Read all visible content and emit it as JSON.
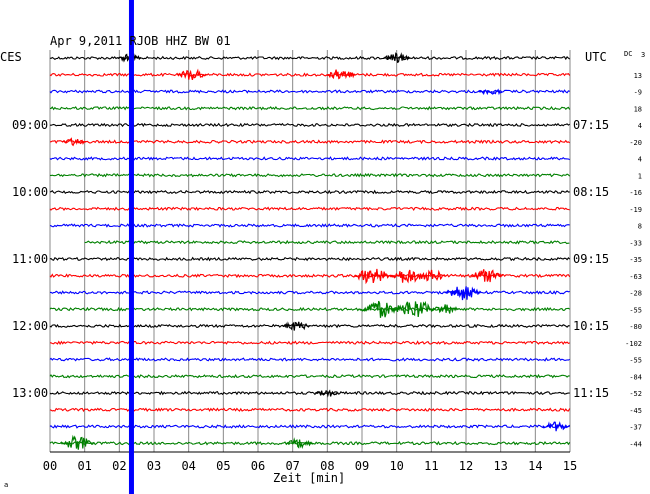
{
  "header": {
    "title": "Apr 9,2011  RJOB HHZ BW 01",
    "left_tz": "CES",
    "right_tz": "UTC",
    "dc_label": "DC"
  },
  "chart_data": {
    "type": "line",
    "title": "Apr 9,2011  RJOB HHZ BW 01",
    "xlabel": "Zeit [min]",
    "x_ticks": [
      "00",
      "01",
      "02",
      "03",
      "04",
      "05",
      "06",
      "07",
      "08",
      "09",
      "10",
      "11",
      "12",
      "13",
      "14",
      "15"
    ],
    "xlim": [
      0,
      15
    ],
    "trace_colors": [
      "#000000",
      "#ff0000",
      "#0000ff",
      "#008000"
    ],
    "left_time_labels": [
      {
        "row": 4,
        "text": "09:00"
      },
      {
        "row": 8,
        "text": "10:00"
      },
      {
        "row": 12,
        "text": "11:00"
      },
      {
        "row": 16,
        "text": "12:00"
      },
      {
        "row": 20,
        "text": "13:00"
      }
    ],
    "right_time_labels": [
      {
        "row": 4,
        "text": "07:15"
      },
      {
        "row": 8,
        "text": "08:15"
      },
      {
        "row": 12,
        "text": "09:15"
      },
      {
        "row": 16,
        "text": "10:15"
      },
      {
        "row": 20,
        "text": "11:15"
      }
    ],
    "dc_offsets": [
      "3",
      "13",
      "-9",
      "18",
      "4",
      "-20",
      "4",
      "1",
      "-16",
      "-19",
      "8",
      "-33",
      "-35",
      "-63",
      "-28",
      "-55",
      "-80",
      "-102",
      "-55",
      "-84",
      "-52",
      "-45",
      "-37",
      "-44"
    ],
    "gap": {
      "row": 11,
      "x_start": 0,
      "x_end": 1.0
    },
    "marker": {
      "x": 2.35,
      "color": "#0000ff"
    },
    "events": [
      {
        "row": 0,
        "x": 2.3,
        "amp": 4
      },
      {
        "row": 0,
        "x": 10.0,
        "amp": 5
      },
      {
        "row": 1,
        "x": 4.1,
        "amp": 6
      },
      {
        "row": 1,
        "x": 8.4,
        "amp": 6
      },
      {
        "row": 2,
        "x": 12.7,
        "amp": 4
      },
      {
        "row": 5,
        "x": 0.7,
        "amp": 4
      },
      {
        "row": 13,
        "x": 9.3,
        "amp": 8
      },
      {
        "row": 13,
        "x": 10.3,
        "amp": 8
      },
      {
        "row": 13,
        "x": 11.0,
        "amp": 6
      },
      {
        "row": 13,
        "x": 12.6,
        "amp": 7
      },
      {
        "row": 14,
        "x": 11.9,
        "amp": 8
      },
      {
        "row": 15,
        "x": 9.5,
        "amp": 9
      },
      {
        "row": 15,
        "x": 10.5,
        "amp": 10
      },
      {
        "row": 15,
        "x": 11.4,
        "amp": 5
      },
      {
        "row": 16,
        "x": 7.1,
        "amp": 5
      },
      {
        "row": 20,
        "x": 8.0,
        "amp": 4
      },
      {
        "row": 22,
        "x": 14.6,
        "amp": 5
      },
      {
        "row": 23,
        "x": 0.8,
        "amp": 7
      },
      {
        "row": 23,
        "x": 7.2,
        "amp": 5
      }
    ]
  }
}
